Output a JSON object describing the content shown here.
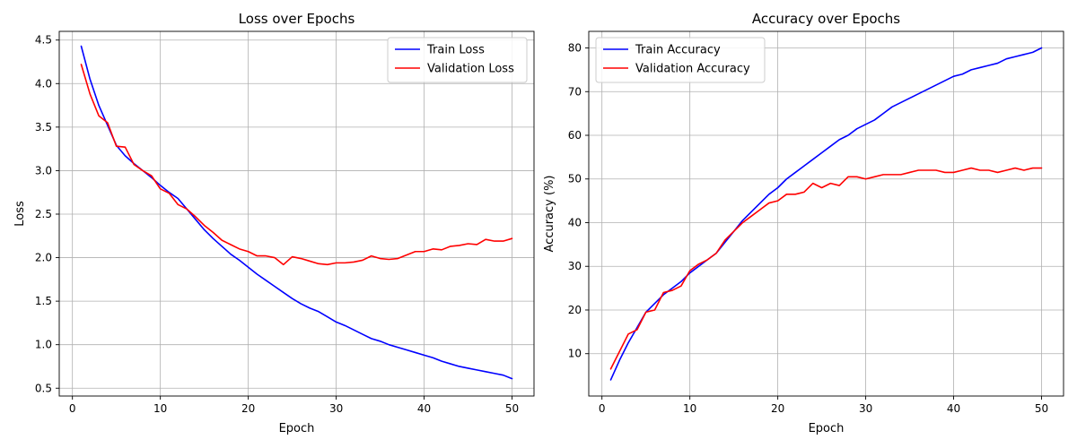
{
  "chart_data": [
    {
      "type": "line",
      "title": "Loss over Epochs",
      "xlabel": "Epoch",
      "ylabel": "Loss",
      "xlim": [
        -1.5,
        52.5
      ],
      "ylim": [
        0.41,
        4.6
      ],
      "xticks": [
        0,
        10,
        20,
        30,
        40,
        50
      ],
      "yticks": [
        0.5,
        1.0,
        1.5,
        2.0,
        2.5,
        3.0,
        3.5,
        4.0,
        4.5
      ],
      "tick_decimals": 1,
      "grid": true,
      "legend_position": "top-right",
      "x": [
        1,
        2,
        3,
        4,
        5,
        6,
        7,
        8,
        9,
        10,
        11,
        12,
        13,
        14,
        15,
        16,
        17,
        18,
        19,
        20,
        21,
        22,
        23,
        24,
        25,
        26,
        27,
        28,
        29,
        30,
        31,
        32,
        33,
        34,
        35,
        36,
        37,
        38,
        39,
        40,
        41,
        42,
        43,
        44,
        45,
        46,
        47,
        48,
        49,
        50
      ],
      "series": [
        {
          "name": "Train Loss",
          "color": "#0000ff",
          "values": [
            4.43,
            4.05,
            3.75,
            3.52,
            3.29,
            3.17,
            3.08,
            3.0,
            2.92,
            2.83,
            2.75,
            2.68,
            2.56,
            2.44,
            2.32,
            2.22,
            2.13,
            2.04,
            1.97,
            1.89,
            1.81,
            1.74,
            1.67,
            1.6,
            1.53,
            1.47,
            1.42,
            1.38,
            1.32,
            1.26,
            1.22,
            1.17,
            1.12,
            1.07,
            1.04,
            1.0,
            0.97,
            0.94,
            0.91,
            0.88,
            0.85,
            0.81,
            0.78,
            0.75,
            0.73,
            0.71,
            0.69,
            0.67,
            0.65,
            0.61
          ]
        },
        {
          "name": "Validation Loss",
          "color": "#ff0000",
          "values": [
            4.22,
            3.88,
            3.63,
            3.55,
            3.28,
            3.27,
            3.07,
            3.0,
            2.94,
            2.79,
            2.74,
            2.61,
            2.56,
            2.47,
            2.37,
            2.29,
            2.2,
            2.15,
            2.1,
            2.07,
            2.02,
            2.02,
            2.0,
            1.92,
            2.01,
            1.99,
            1.96,
            1.93,
            1.92,
            1.94,
            1.94,
            1.95,
            1.97,
            2.02,
            1.99,
            1.98,
            1.99,
            2.03,
            2.07,
            2.07,
            2.1,
            2.09,
            2.13,
            2.14,
            2.16,
            2.15,
            2.21,
            2.19,
            2.19,
            2.22
          ]
        }
      ]
    },
    {
      "type": "line",
      "title": "Accuracy over Epochs",
      "xlabel": "Epoch",
      "ylabel": "Accuracy (%)",
      "xlim": [
        -1.5,
        52.5
      ],
      "ylim": [
        0.3,
        83.8
      ],
      "xticks": [
        0,
        10,
        20,
        30,
        40,
        50
      ],
      "yticks": [
        10,
        20,
        30,
        40,
        50,
        60,
        70,
        80
      ],
      "tick_decimals": 0,
      "grid": true,
      "legend_position": "top-left",
      "x": [
        1,
        2,
        3,
        4,
        5,
        6,
        7,
        8,
        9,
        10,
        11,
        12,
        13,
        14,
        15,
        16,
        17,
        18,
        19,
        20,
        21,
        22,
        23,
        24,
        25,
        26,
        27,
        28,
        29,
        30,
        31,
        32,
        33,
        34,
        35,
        36,
        37,
        38,
        39,
        40,
        41,
        42,
        43,
        44,
        45,
        46,
        47,
        48,
        49,
        50
      ],
      "series": [
        {
          "name": "Train Accuracy",
          "color": "#0000ff",
          "values": [
            4,
            8.5,
            12.5,
            16,
            19.5,
            21.5,
            23.5,
            25,
            26.5,
            28.5,
            30,
            31.5,
            33,
            35.5,
            38,
            40.5,
            42.5,
            44.5,
            46.5,
            48,
            50,
            51.5,
            53,
            54.5,
            56,
            57.5,
            59,
            60,
            61.5,
            62.5,
            63.5,
            65,
            66.5,
            67.5,
            68.5,
            69.5,
            70.5,
            71.5,
            72.5,
            73.5,
            74,
            75,
            75.5,
            76,
            76.5,
            77.5,
            78,
            78.5,
            79,
            80
          ]
        },
        {
          "name": "Validation Accuracy",
          "color": "#ff0000",
          "values": [
            6.5,
            10.5,
            14.5,
            15.5,
            19.5,
            20,
            24,
            24.5,
            25.5,
            29,
            30.5,
            31.5,
            33,
            36,
            38,
            40,
            41.5,
            43,
            44.5,
            45,
            46.5,
            46.5,
            47,
            49,
            48,
            49,
            48.5,
            50.5,
            50.5,
            50,
            50.5,
            51,
            51,
            51,
            51.5,
            52,
            52,
            52,
            51.5,
            51.5,
            52,
            52.5,
            52,
            52,
            51.5,
            52,
            52.5,
            52,
            52.5,
            52.5
          ]
        }
      ]
    }
  ]
}
